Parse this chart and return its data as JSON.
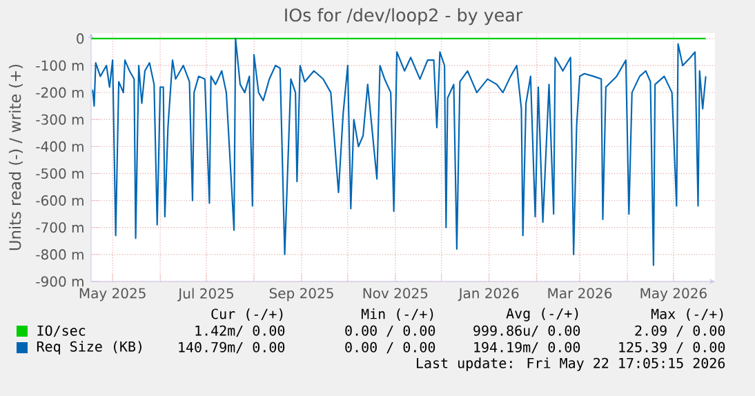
{
  "chart_data": {
    "type": "line",
    "title": "IOs for /dev/loop2 - by year",
    "ylabel": "Units read (-) / write (+)",
    "xlim": [
      "2025-04-17",
      "2026-05-28"
    ],
    "xticks": [
      {
        "value": "2025-05-01",
        "label": "May 2025"
      },
      {
        "value": "2025-06-01",
        "label": null
      },
      {
        "value": "2025-07-01",
        "label": "Jul 2025"
      },
      {
        "value": "2025-08-01",
        "label": null
      },
      {
        "value": "2025-09-01",
        "label": "Sep 2025"
      },
      {
        "value": "2025-10-01",
        "label": null
      },
      {
        "value": "2025-11-01",
        "label": "Nov 2025"
      },
      {
        "value": "2025-12-01",
        "label": null
      },
      {
        "value": "2026-01-01",
        "label": "Jan 2026"
      },
      {
        "value": "2026-02-01",
        "label": null
      },
      {
        "value": "2026-03-01",
        "label": "Mar 2026"
      },
      {
        "value": "2026-04-01",
        "label": null
      },
      {
        "value": "2026-05-01",
        "label": "May 2026"
      }
    ],
    "ylim": [
      -900,
      20
    ],
    "yticks": [
      {
        "value": -900,
        "label": "-900 m"
      },
      {
        "value": -800,
        "label": "-800 m"
      },
      {
        "value": -700,
        "label": "-700 m"
      },
      {
        "value": -600,
        "label": "-600 m"
      },
      {
        "value": -500,
        "label": "-500 m"
      },
      {
        "value": -400,
        "label": "-400 m"
      },
      {
        "value": -300,
        "label": "-300 m"
      },
      {
        "value": -200,
        "label": "-200 m"
      },
      {
        "value": -100,
        "label": "-100 m"
      },
      0
    ],
    "grid": true,
    "legend": "bottom",
    "series": [
      {
        "name": "IO/sec",
        "color": "#00cc00",
        "x": [
          "2025-04-17",
          "2025-06-10",
          "2025-07-20",
          "2025-08-01",
          "2025-09-25",
          "2025-12-20",
          "2026-01-20",
          "2026-02-25",
          "2026-03-20",
          "2026-04-20",
          "2026-05-22"
        ],
        "values": [
          0,
          0,
          0,
          0,
          0,
          0,
          0,
          0,
          0,
          0,
          0
        ]
      },
      {
        "name": "Req Size (KB)",
        "color": "#0066b3",
        "x": [
          "2025-04-18",
          "2025-04-19",
          "2025-04-20",
          "2025-04-23",
          "2025-04-27",
          "2025-04-29",
          "2025-05-01",
          "2025-05-03",
          "2025-05-05",
          "2025-05-08",
          "2025-05-09",
          "2025-05-12",
          "2025-05-15",
          "2025-05-16",
          "2025-05-18",
          "2025-05-20",
          "2025-05-22",
          "2025-05-25",
          "2025-05-28",
          "2025-05-30",
          "2025-06-01",
          "2025-06-03",
          "2025-06-04",
          "2025-06-06",
          "2025-06-09",
          "2025-06-11",
          "2025-06-16",
          "2025-06-20",
          "2025-06-22",
          "2025-06-23",
          "2025-06-26",
          "2025-06-30",
          "2025-07-03",
          "2025-07-04",
          "2025-07-07",
          "2025-07-11",
          "2025-07-14",
          "2025-07-19",
          "2025-07-20",
          "2025-07-23",
          "2025-07-26",
          "2025-07-29",
          "2025-07-31",
          "2025-08-01",
          "2025-08-04",
          "2025-08-07",
          "2025-08-11",
          "2025-08-15",
          "2025-08-18",
          "2025-08-21",
          "2025-08-25",
          "2025-08-28",
          "2025-08-29",
          "2025-08-31",
          "2025-09-03",
          "2025-09-09",
          "2025-09-15",
          "2025-09-20",
          "2025-09-25",
          "2025-09-28",
          "2025-10-01",
          "2025-10-03",
          "2025-10-05",
          "2025-10-08",
          "2025-10-11",
          "2025-10-14",
          "2025-10-20",
          "2025-10-22",
          "2025-10-25",
          "2025-10-29",
          "2025-10-31",
          "2025-11-02",
          "2025-11-07",
          "2025-11-11",
          "2025-11-17",
          "2025-11-22",
          "2025-11-26",
          "2025-11-28",
          "2025-11-30",
          "2025-12-03",
          "2025-12-04",
          "2025-12-05",
          "2025-12-09",
          "2025-12-11",
          "2025-12-13",
          "2025-12-18",
          "2025-12-24",
          "2025-12-31",
          "2026-01-06",
          "2026-01-10",
          "2026-01-15",
          "2026-01-19",
          "2026-01-22",
          "2026-01-23",
          "2026-01-25",
          "2026-01-28",
          "2026-01-31",
          "2026-02-02",
          "2026-02-05",
          "2026-02-09",
          "2026-02-12",
          "2026-02-13",
          "2026-02-18",
          "2026-02-23",
          "2026-02-25",
          "2026-02-27",
          "2026-03-01",
          "2026-03-04",
          "2026-03-10",
          "2026-03-15",
          "2026-03-16",
          "2026-03-18",
          "2026-03-25",
          "2026-03-31",
          "2026-04-02",
          "2026-04-04",
          "2026-04-09",
          "2026-04-13",
          "2026-04-16",
          "2026-04-18",
          "2026-04-19",
          "2026-04-25",
          "2026-04-30",
          "2026-05-03",
          "2026-05-04",
          "2026-05-07",
          "2026-05-12",
          "2026-05-15",
          "2026-05-17",
          "2026-05-18",
          "2026-05-20",
          "2026-05-22"
        ],
        "values": [
          -190,
          -250,
          -90,
          -140,
          -100,
          -180,
          -80,
          -730,
          -160,
          -200,
          -80,
          -120,
          -150,
          -740,
          -100,
          -240,
          -120,
          -90,
          -170,
          -690,
          -180,
          -180,
          -660,
          -330,
          -80,
          -150,
          -100,
          -160,
          -600,
          -200,
          -140,
          -150,
          -610,
          -140,
          -170,
          -120,
          -200,
          -710,
          0,
          -170,
          -200,
          -140,
          -620,
          -60,
          -200,
          -230,
          -150,
          -100,
          -110,
          -800,
          -150,
          -200,
          -530,
          -100,
          -160,
          -120,
          -150,
          -200,
          -570,
          -280,
          -100,
          -630,
          -300,
          -400,
          -360,
          -170,
          -520,
          -100,
          -150,
          -200,
          -640,
          -50,
          -120,
          -70,
          -150,
          -80,
          -80,
          -330,
          -50,
          -100,
          -700,
          -220,
          -170,
          -780,
          -160,
          -120,
          -200,
          -150,
          -170,
          -200,
          -140,
          -100,
          -260,
          -730,
          -240,
          -140,
          -660,
          -180,
          -680,
          -170,
          -650,
          -70,
          -120,
          -70,
          -800,
          -320,
          -140,
          -130,
          -140,
          -150,
          -670,
          -180,
          -140,
          -80,
          -650,
          -200,
          -140,
          -120,
          -160,
          -840,
          -170,
          -140,
          -200,
          -620,
          -20,
          -100,
          -70,
          -50,
          -620,
          -120,
          -260,
          -140
        ]
      }
    ],
    "annotations": [
      "Cur (-/+)",
      "Min (-/+)",
      "Avg (-/+)",
      "Max (-/+)",
      "1.42m/  0.00",
      "0.00 /  0.00",
      "999.86u/  0.00",
      "2.09 /  0.00",
      "140.79m/  0.00",
      "0.00 /  0.00",
      "194.19m/  0.00",
      "125.39 /  0.00",
      "Last update: Fri May 22 17:05:15 2026"
    ]
  }
}
